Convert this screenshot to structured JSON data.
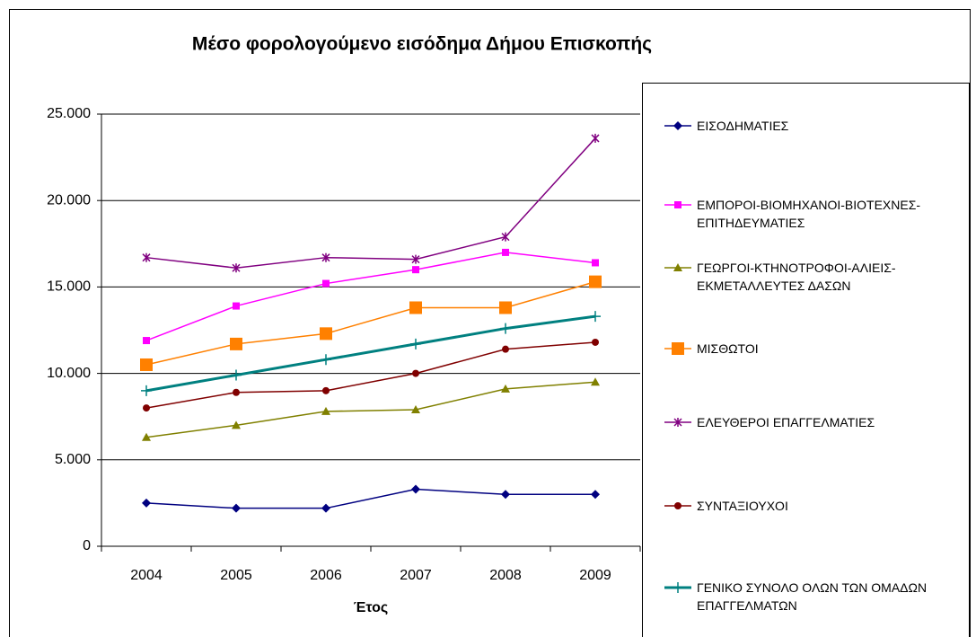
{
  "chart_data": {
    "type": "line",
    "title": "Μέσο φορολογούμενο εισόδημα Δήμου Επισκοπής",
    "x_label": "Έτος",
    "categories": [
      "2004",
      "2005",
      "2006",
      "2007",
      "2008",
      "2009"
    ],
    "ylim": [
      0,
      25000
    ],
    "yticks": [
      0,
      {
        "value": 5000,
        "label": "5.000"
      },
      {
        "value": 10000,
        "label": "10.000"
      },
      {
        "value": 15000,
        "label": "15.000"
      },
      {
        "value": 20000,
        "label": "20.000"
      },
      {
        "value": 25000,
        "label": "25.000"
      }
    ],
    "grid": true,
    "legend": "right",
    "series": [
      {
        "name": "ΕΙΣΟΔΗΜΑΤΙΕΣ",
        "color": "#000080",
        "marker": "diamond",
        "values": [
          2500,
          2200,
          2200,
          3300,
          3000,
          3000
        ]
      },
      {
        "name": "ΕΜΠΟΡΟΙ-ΒΙΟΜΗΧΑΝΟΙ-ΒΙΟΤΕΧΝΕΣ-ΕΠΙΤΗΔΕΥΜΑΤΙΕΣ",
        "color": "#ff00ff",
        "marker": "square",
        "values": [
          11900,
          13900,
          15200,
          16000,
          17000,
          16400
        ]
      },
      {
        "name": "ΓΕΩΡΓΟΙ-ΚΤΗΝΟΤΡΟΦΟΙ-ΑΛΙΕΙΣ-ΕΚΜΕΤΑΛΛΕΥΤΕΣ ΔΑΣΩΝ",
        "color": "#808000",
        "marker": "triangle",
        "values": [
          6300,
          7000,
          7800,
          7900,
          9100,
          9500
        ]
      },
      {
        "name": "ΜΙΣΘΩΤΟΙ",
        "color": "#ff8000",
        "marker": "bigsquare",
        "values": [
          10500,
          11700,
          12300,
          13800,
          13800,
          15300
        ]
      },
      {
        "name": "ΕΛΕΥΘΕΡΟΙ ΕΠΑΓΓΕΛΜΑΤΙΕΣ",
        "color": "#800080",
        "marker": "star",
        "values": [
          16700,
          16100,
          16700,
          16600,
          17900,
          23600
        ]
      },
      {
        "name": "ΣΥΝΤΑΞΙΟΥΧΟΙ",
        "color": "#800000",
        "marker": "circle",
        "values": [
          8000,
          8900,
          9000,
          10000,
          11400,
          11800
        ]
      },
      {
        "name": "ΓΕΝΙΚΟ ΣΥΝΟΛΟ ΟΛΩΝ ΤΩΝ ΟΜΑΔΩΝ ΕΠΑΓΓΕΛΜΑΤΩΝ",
        "color": "#008080",
        "marker": "plus",
        "values": [
          9000,
          9900,
          10800,
          11700,
          12600,
          13300
        ]
      }
    ]
  }
}
